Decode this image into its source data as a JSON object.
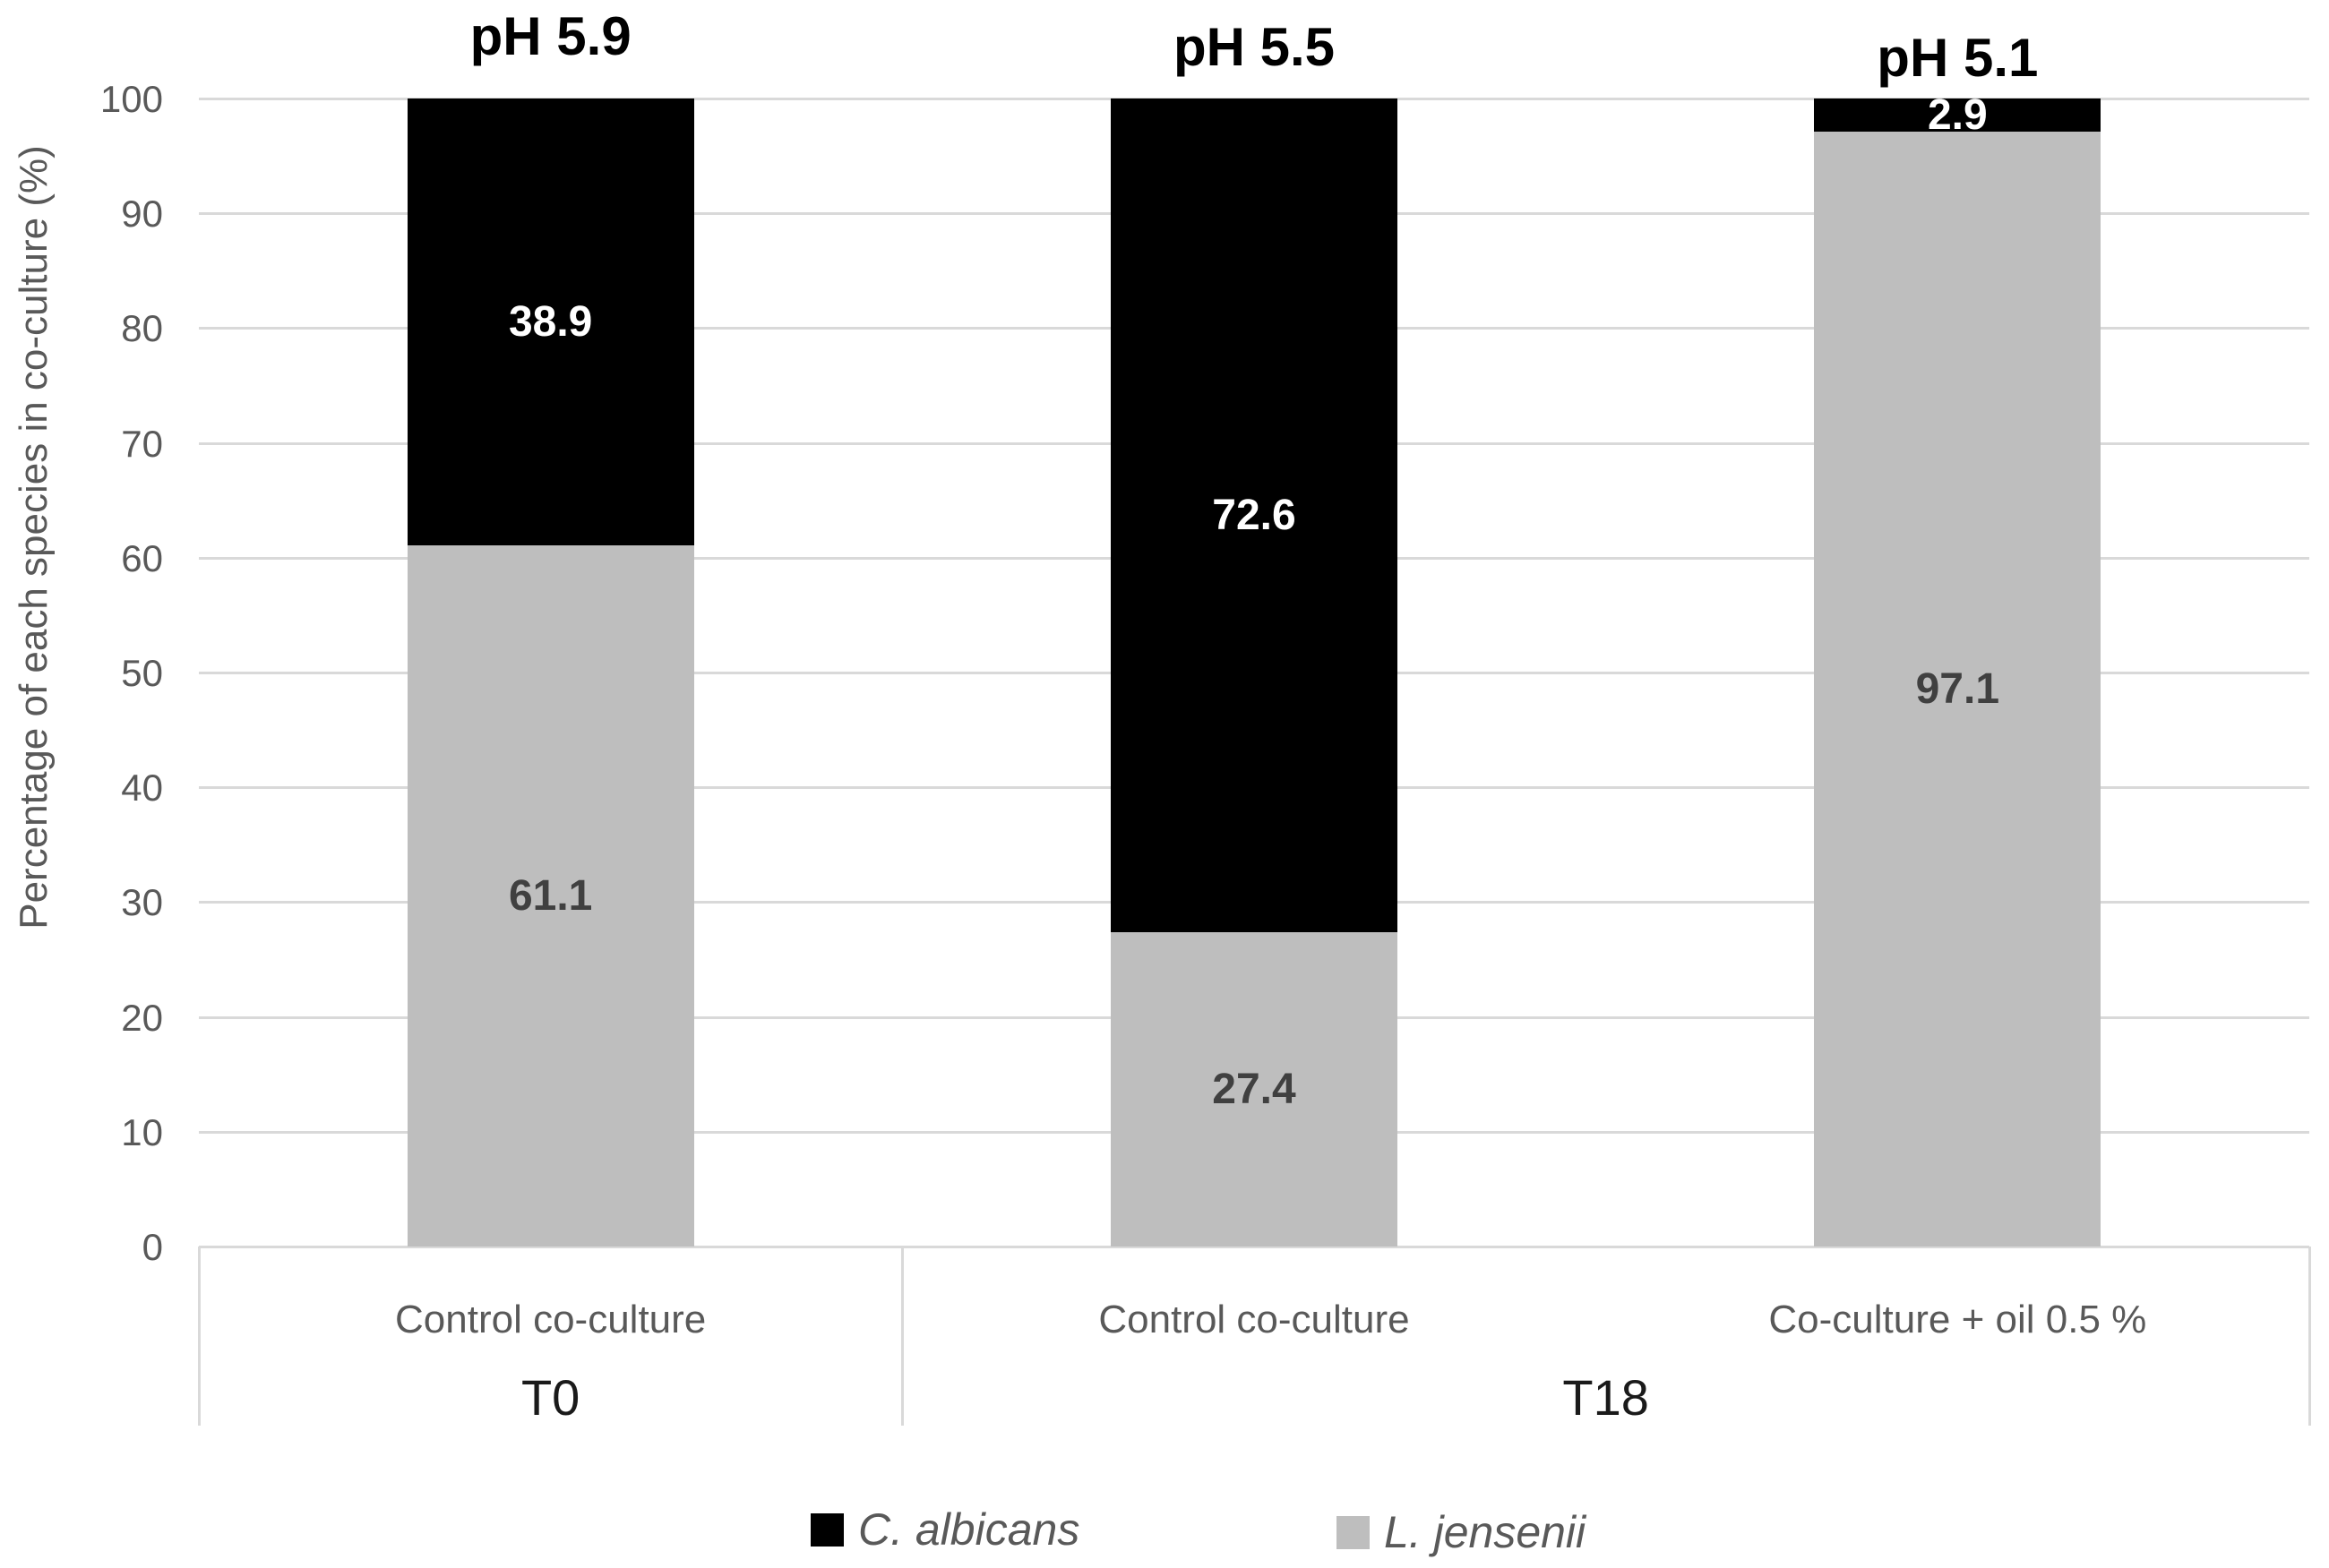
{
  "figure": {
    "background": "#ffffff"
  },
  "chart_data": {
    "type": "bar",
    "stacked": true,
    "ylabel": "Percentage of each species in co-culture (%)",
    "xlabel": "",
    "ylim": [
      0,
      100
    ],
    "yticks": [
      0,
      10,
      20,
      30,
      40,
      50,
      60,
      70,
      80,
      90,
      100
    ],
    "grid": "horizontal",
    "legend_position": "bottom",
    "categories": [
      {
        "label": "Control co-culture",
        "group": "T0",
        "ph_annotation": "pH 5.9"
      },
      {
        "label": "Control co-culture",
        "group": "T18",
        "ph_annotation": "pH 5.5"
      },
      {
        "label": "Co-culture + oil 0.5 %",
        "group": "T18",
        "ph_annotation": "pH 5.1"
      }
    ],
    "groups": [
      {
        "label": "T0",
        "from": 0,
        "to": 1
      },
      {
        "label": "T18",
        "from": 1,
        "to": 3
      }
    ],
    "series": [
      {
        "name": "C. albicans",
        "color": "#000000",
        "label_color": "#ffffff",
        "values": [
          38.9,
          72.6,
          2.9
        ]
      },
      {
        "name": "L. jensenii",
        "color": "#bebebe",
        "label_color": "#404040",
        "values": [
          61.1,
          27.4,
          97.1
        ]
      }
    ],
    "colors": {
      "gridline": "#d9d9d9",
      "axis_text": "#595959",
      "group_text": "#1a1a1a",
      "title_text": "#000000"
    }
  }
}
